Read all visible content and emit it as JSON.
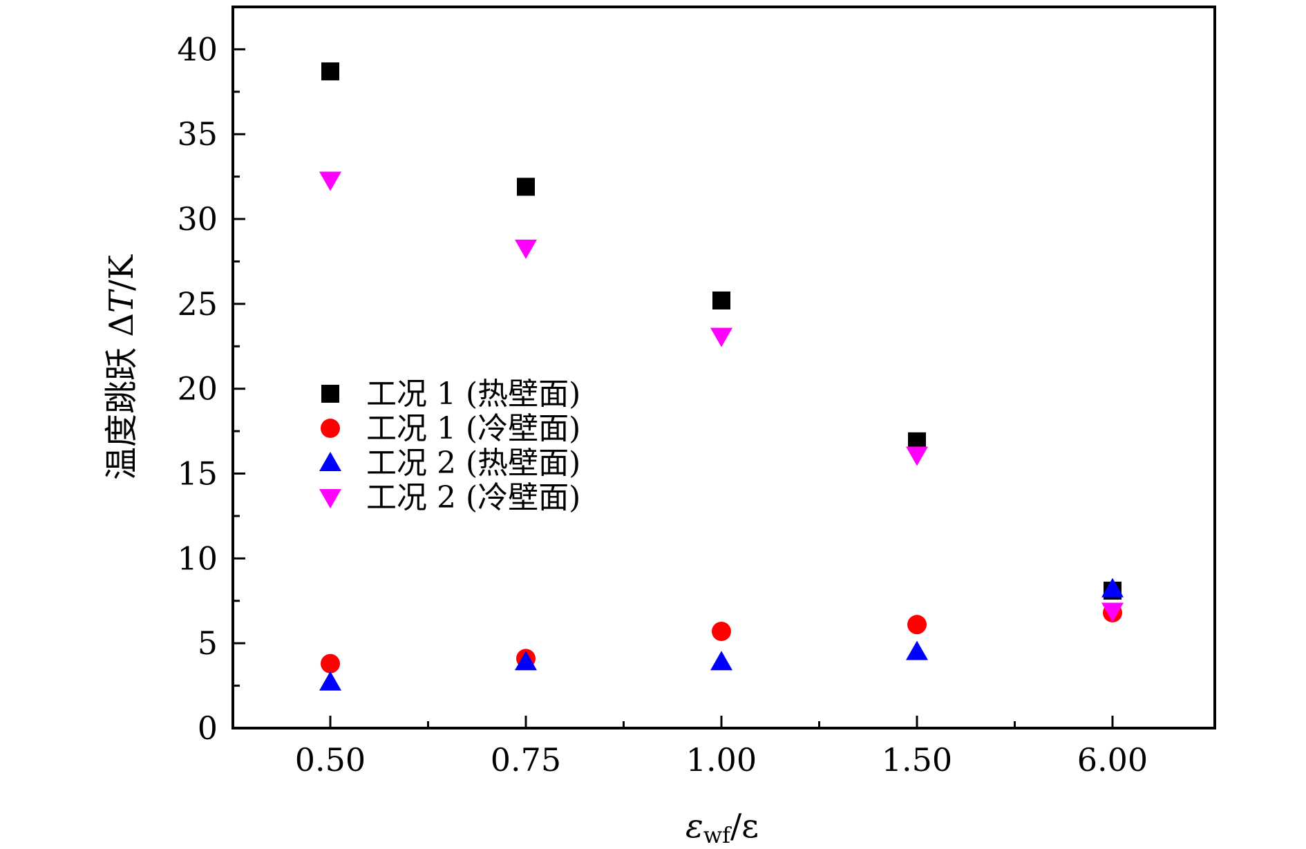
{
  "chart_data": {
    "type": "scatter",
    "title": "",
    "xlabel": "εwf/ε",
    "xlabel_main": "ε",
    "xlabel_sub": "wf",
    "xlabel_tail": "/ε",
    "ylabel": "温度跳跃 ΔT/K",
    "ylabel_prefix": "温度跳跃 Δ",
    "ylabel_italic": "T",
    "ylabel_suffix": "/K",
    "categories": [
      "0.50",
      "0.75",
      "1.00",
      "1.50",
      "6.00"
    ],
    "ylim": [
      0,
      42.5
    ],
    "yticks": [
      "0",
      "5",
      "10",
      "15",
      "20",
      "25",
      "30",
      "35",
      "40"
    ],
    "grid": false,
    "legend_position": "center-left",
    "series": [
      {
        "name": "工况 1 (热壁面)",
        "marker": "square",
        "color": "#000000",
        "values": [
          38.7,
          31.9,
          25.2,
          16.9,
          8.1
        ]
      },
      {
        "name": "工况 1 (冷壁面)",
        "marker": "circle",
        "color": "#ff0000",
        "values": [
          3.8,
          4.1,
          5.7,
          6.1,
          6.8
        ]
      },
      {
        "name": "工况 2 (热壁面)",
        "marker": "triangle-up",
        "color": "#0000ff",
        "values": [
          2.7,
          3.9,
          3.9,
          4.5,
          8.2
        ]
      },
      {
        "name": "工况 2 (冷壁面)",
        "marker": "triangle-down",
        "color": "#ff00ff",
        "values": [
          32.3,
          28.3,
          23.1,
          16.1,
          6.9
        ]
      }
    ]
  }
}
